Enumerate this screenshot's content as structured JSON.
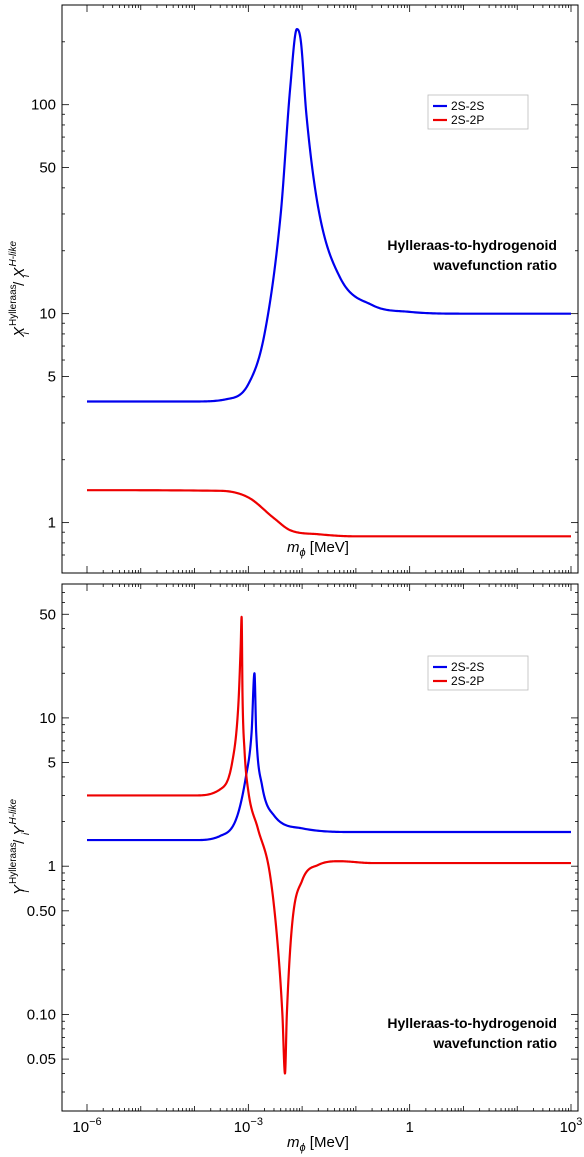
{
  "chart_data": [
    {
      "type": "line",
      "xlabel": "m_ϕ [MeV]",
      "xlabel_parts": {
        "main": "m",
        "sub": "ϕ",
        "unit": "[MeV]"
      },
      "ylabel_parts": {
        "base": "X",
        "sub": "i",
        "sup1": "Hylleraas",
        "sep": "/",
        "sup2": "H-like"
      },
      "xscale": "log",
      "yscale": "log",
      "xlim": [
        1e-06,
        1000
      ],
      "ylim": [
        0.7,
        300
      ],
      "x_ticks": [
        1e-06,
        0.001,
        1,
        1000
      ],
      "x_tick_labels": [
        {
          "base": "10",
          "exp": "−6"
        },
        {
          "base": "10",
          "exp": "−3"
        },
        {
          "base": "1",
          "exp": ""
        },
        {
          "base": "10",
          "exp": "3"
        }
      ],
      "y_ticks": [
        1,
        5,
        10,
        50,
        100
      ],
      "y_tick_labels": [
        "1",
        "5",
        "10",
        "50",
        "100"
      ],
      "annotation": [
        "Hylleraas-to-hydrogenoid",
        "wavefunction ratio"
      ],
      "legend_position": "top-right",
      "series": [
        {
          "name": "2S-2S",
          "color": "#0000ee",
          "points": [
            [
              1e-06,
              3.8
            ],
            [
              0.0001,
              3.8
            ],
            [
              0.0004,
              3.9
            ],
            [
              0.001,
              4.6
            ],
            [
              0.002,
              8
            ],
            [
              0.004,
              30
            ],
            [
              0.006,
              120
            ],
            [
              0.008,
              230
            ],
            [
              0.0095,
              200
            ],
            [
              0.012,
              90
            ],
            [
              0.02,
              32
            ],
            [
              0.05,
              15
            ],
            [
              0.2,
              11
            ],
            [
              1,
              10.2
            ],
            [
              10,
              10
            ],
            [
              1000,
              10
            ]
          ]
        },
        {
          "name": "2S-2P",
          "color": "#ee0000",
          "points": [
            [
              1e-06,
              1.43
            ],
            [
              0.0003,
              1.42
            ],
            [
              0.001,
              1.32
            ],
            [
              0.003,
              1.05
            ],
            [
              0.006,
              0.92
            ],
            [
              0.02,
              0.88
            ],
            [
              0.1,
              0.86
            ],
            [
              1000,
              0.86
            ]
          ]
        }
      ]
    },
    {
      "type": "line",
      "xlabel": "m_ϕ [MeV]",
      "xlabel_parts": {
        "main": "m",
        "sub": "ϕ",
        "unit": "[MeV]"
      },
      "ylabel_parts": {
        "base": "Y",
        "sub": "i",
        "sup1": "Hylleraas",
        "sep": "/",
        "sup2": "H-like"
      },
      "xscale": "log",
      "yscale": "log",
      "xlim": [
        1e-06,
        1000
      ],
      "ylim": [
        0.03,
        80
      ],
      "x_ticks": [
        1e-06,
        0.001,
        1,
        1000
      ],
      "x_tick_labels": [
        {
          "base": "10",
          "exp": "−6"
        },
        {
          "base": "10",
          "exp": "−3"
        },
        {
          "base": "1",
          "exp": ""
        },
        {
          "base": "10",
          "exp": "3"
        }
      ],
      "y_ticks": [
        0.05,
        0.1,
        0.5,
        1,
        5,
        10,
        50
      ],
      "y_tick_labels": [
        "0.05",
        "0.10",
        "0.50",
        "1",
        "5",
        "10",
        "50"
      ],
      "annotation": [
        "Hylleraas-to-hydrogenoid",
        "wavefunction ratio"
      ],
      "legend_position": "top-right",
      "series": [
        {
          "name": "2S-2S",
          "color": "#0000ee",
          "points": [
            [
              1e-06,
              1.5
            ],
            [
              0.0001,
              1.5
            ],
            [
              0.0003,
              1.6
            ],
            [
              0.0006,
              2.1
            ],
            [
              0.0009,
              4
            ],
            [
              0.00115,
              8
            ],
            [
              0.0013,
              20
            ],
            [
              0.0014,
              8
            ],
            [
              0.0018,
              3.5
            ],
            [
              0.003,
              2.2
            ],
            [
              0.01,
              1.8
            ],
            [
              0.1,
              1.7
            ],
            [
              1000,
              1.7
            ]
          ]
        },
        {
          "name": "2S-2P",
          "color": "#ee0000",
          "points": [
            [
              1e-06,
              3.0
            ],
            [
              0.0001,
              3.0
            ],
            [
              0.0003,
              3.3
            ],
            [
              0.0005,
              5
            ],
            [
              0.00065,
              12
            ],
            [
              0.00072,
              30
            ],
            [
              0.00075,
              48
            ],
            [
              0.00078,
              14
            ],
            [
              0.00085,
              6
            ],
            [
              0.001,
              3.2
            ],
            [
              0.0015,
              1.8
            ],
            [
              0.0025,
              0.9
            ],
            [
              0.0035,
              0.3
            ],
            [
              0.0043,
              0.1
            ],
            [
              0.0048,
              0.04
            ],
            [
              0.0052,
              0.1
            ],
            [
              0.0065,
              0.4
            ],
            [
              0.01,
              0.8
            ],
            [
              0.02,
              1.02
            ],
            [
              0.05,
              1.08
            ],
            [
              0.2,
              1.05
            ],
            [
              1000,
              1.05
            ]
          ]
        }
      ]
    }
  ]
}
